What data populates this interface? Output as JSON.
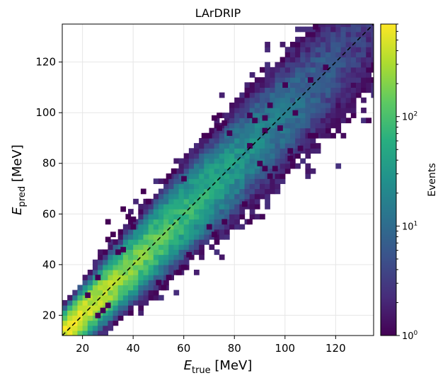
{
  "chart_data": {
    "type": "heatmap",
    "title": "LArDRIP",
    "xlabel": {
      "symbol": "E",
      "subscript": "true",
      "unit": "[MeV]"
    },
    "ylabel": {
      "symbol": "E",
      "subscript": "pred",
      "unit": "[MeV]"
    },
    "xlim": [
      12,
      135
    ],
    "ylim": [
      12,
      135
    ],
    "xticks": [
      20,
      40,
      60,
      80,
      100,
      120
    ],
    "yticks": [
      20,
      40,
      60,
      80,
      100,
      120
    ],
    "grid": true,
    "bin_width_mev": 2.0,
    "diagonal": {
      "style": "dashed",
      "color": "#000000",
      "from": [
        12,
        12
      ],
      "to": [
        135,
        135
      ]
    },
    "colorbar": {
      "label": "Events",
      "scale": "log",
      "range": [
        1,
        700
      ],
      "colormap": "viridis",
      "ticks": [
        {
          "value": 1,
          "label": "10",
          "exp": "0"
        },
        {
          "value": 10,
          "label": "10",
          "exp": "1"
        },
        {
          "value": 100,
          "label": "10",
          "exp": "2"
        }
      ]
    },
    "distribution": {
      "core_peak_counts": 700,
      "peak_energy_mev": 14,
      "decay_scale_mev": 22,
      "core_width_mev": 3.2,
      "width_growth_per_mev": 0.08,
      "mean_slope": 0.985
    },
    "outlier_bins": [
      [
        112,
        134
      ],
      [
        116,
        118
      ],
      [
        100,
        111
      ],
      [
        110,
        113
      ],
      [
        104,
        100
      ],
      [
        94,
        103
      ],
      [
        92,
        98
      ],
      [
        98,
        94
      ],
      [
        112,
        91
      ],
      [
        110,
        91
      ],
      [
        74,
        99
      ],
      [
        72,
        98
      ],
      [
        76,
        96
      ],
      [
        74,
        94
      ],
      [
        70,
        91
      ],
      [
        68,
        91
      ],
      [
        78,
        92
      ],
      [
        86,
        99
      ],
      [
        88,
        97
      ],
      [
        92,
        93
      ],
      [
        106,
        86
      ],
      [
        102,
        85
      ],
      [
        102,
        82
      ],
      [
        86,
        87
      ],
      [
        96,
        78
      ],
      [
        90,
        80
      ],
      [
        92,
        78
      ],
      [
        94,
        75
      ],
      [
        84,
        64
      ],
      [
        86,
        57
      ],
      [
        76,
        57
      ],
      [
        70,
        55
      ],
      [
        72,
        52
      ],
      [
        62,
        44
      ],
      [
        60,
        39
      ],
      [
        58,
        37
      ],
      [
        54,
        35
      ],
      [
        50,
        33
      ],
      [
        52,
        31
      ],
      [
        46,
        65
      ],
      [
        44,
        69
      ],
      [
        36,
        62
      ],
      [
        38,
        59
      ],
      [
        40,
        58
      ],
      [
        40,
        55
      ],
      [
        30,
        57
      ],
      [
        32,
        52
      ],
      [
        30,
        50
      ],
      [
        56,
        77
      ],
      [
        54,
        75
      ],
      [
        60,
        74
      ],
      [
        36,
        46
      ],
      [
        34,
        45
      ],
      [
        26,
        35
      ],
      [
        22,
        28
      ],
      [
        30,
        24
      ],
      [
        28,
        22
      ],
      [
        26,
        20
      ]
    ]
  }
}
